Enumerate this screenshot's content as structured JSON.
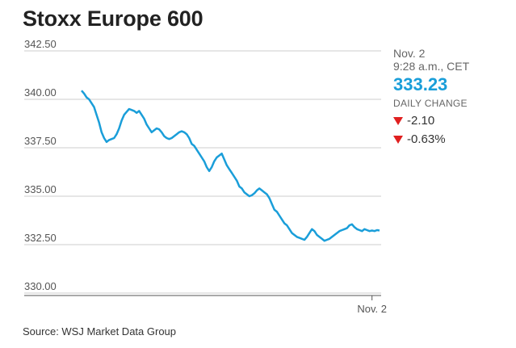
{
  "header": {
    "title": "Stoxx Europe 600"
  },
  "quote": {
    "date": "Nov. 2",
    "time": "9:28 a.m., CET",
    "price": "333.23",
    "daily_change_label": "DAILY CHANGE",
    "change_points": "-2.10",
    "change_percent": "-0.63%",
    "change_color": "#e02020",
    "price_color": "#1a9ed9"
  },
  "footer": {
    "source": "Source: WSJ Market Data Group"
  },
  "chart_data": {
    "type": "line",
    "title": "Stoxx Europe 600",
    "xlabel": "",
    "ylabel": "",
    "ylim": [
      330,
      342.5
    ],
    "yticks": [
      "342.50",
      "340.00",
      "337.50",
      "335.00",
      "332.50",
      "330.00"
    ],
    "xtick_label": "Nov. 2",
    "xtick_position": 116,
    "grid": true,
    "color": "#1a9ed9",
    "series": [
      {
        "name": "",
        "x": [
          0,
          1,
          2,
          3,
          4,
          5,
          6,
          7,
          8,
          9,
          10,
          11,
          12,
          13,
          14,
          15,
          16,
          17,
          18,
          19,
          20,
          21,
          22,
          23,
          24,
          25,
          26,
          27,
          28,
          29,
          30,
          31,
          32,
          33,
          34,
          35,
          36,
          37,
          38,
          39,
          40,
          41,
          42,
          43,
          44,
          45,
          46,
          47,
          48,
          49,
          50,
          51,
          52,
          53,
          54,
          55,
          56,
          57,
          58,
          59,
          60,
          61,
          62,
          63,
          64,
          65,
          66,
          67,
          68,
          69,
          70,
          71,
          72,
          73,
          74,
          75,
          76,
          77,
          78,
          79,
          80,
          81,
          82,
          83,
          84,
          85,
          86,
          87,
          88,
          89,
          90,
          91,
          92,
          93,
          94,
          95,
          96,
          97,
          98,
          99,
          100,
          101,
          102,
          103,
          104,
          105,
          106,
          107,
          108,
          109,
          110,
          111,
          112,
          113,
          114,
          115,
          116,
          117,
          118,
          119
        ],
        "values": [
          340.45,
          340.3,
          340.1,
          340.0,
          339.8,
          339.6,
          339.2,
          338.8,
          338.3,
          338.0,
          337.8,
          337.9,
          337.95,
          338.0,
          338.2,
          338.5,
          338.9,
          339.2,
          339.35,
          339.5,
          339.45,
          339.4,
          339.3,
          339.4,
          339.2,
          339.0,
          338.7,
          338.5,
          338.3,
          338.4,
          338.5,
          338.45,
          338.3,
          338.1,
          338.0,
          337.95,
          338.0,
          338.1,
          338.2,
          338.3,
          338.35,
          338.3,
          338.2,
          338.0,
          337.7,
          337.6,
          337.4,
          337.2,
          337.0,
          336.8,
          336.5,
          336.3,
          336.5,
          336.8,
          337.0,
          337.1,
          337.2,
          336.9,
          336.6,
          336.4,
          336.2,
          336.0,
          335.8,
          335.5,
          335.4,
          335.2,
          335.1,
          335.0,
          335.05,
          335.15,
          335.3,
          335.4,
          335.3,
          335.2,
          335.1,
          334.9,
          334.6,
          334.3,
          334.2,
          334.0,
          333.8,
          333.6,
          333.5,
          333.3,
          333.1,
          333.0,
          332.9,
          332.85,
          332.8,
          332.75,
          332.9,
          333.1,
          333.3,
          333.2,
          333.0,
          332.9,
          332.8,
          332.7,
          332.75,
          332.8,
          332.9,
          333.0,
          333.1,
          333.2,
          333.25,
          333.3,
          333.35,
          333.5,
          333.55,
          333.4,
          333.3,
          333.25,
          333.2,
          333.3,
          333.25,
          333.2,
          333.23,
          333.2,
          333.25,
          333.23
        ]
      }
    ]
  }
}
